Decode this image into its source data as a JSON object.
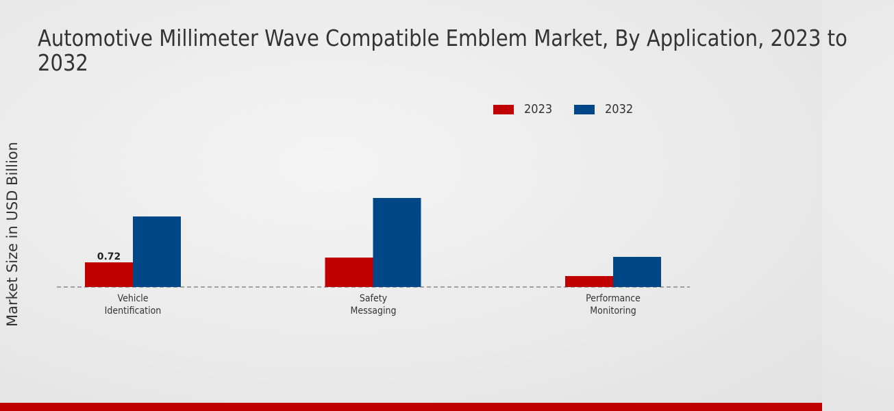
{
  "chart_data": {
    "type": "bar",
    "title": "Automotive Millimeter Wave Compatible Emblem Market, By Application, 2023 to 2032",
    "y_label": "Market Size in USD Billion",
    "categories": [
      "Vehicle Identification",
      "Safety Messaging",
      "Performance Monitoring"
    ],
    "series": [
      {
        "name": "2023",
        "color": "#c00000",
        "values": [
          0.72,
          0.86,
          0.32
        ],
        "value_labels": [
          "0.72",
          null,
          null
        ]
      },
      {
        "name": "2032",
        "color": "#004788",
        "values": [
          2.06,
          2.6,
          0.88
        ]
      }
    ],
    "ylim": [
      0,
      3.2
    ]
  }
}
